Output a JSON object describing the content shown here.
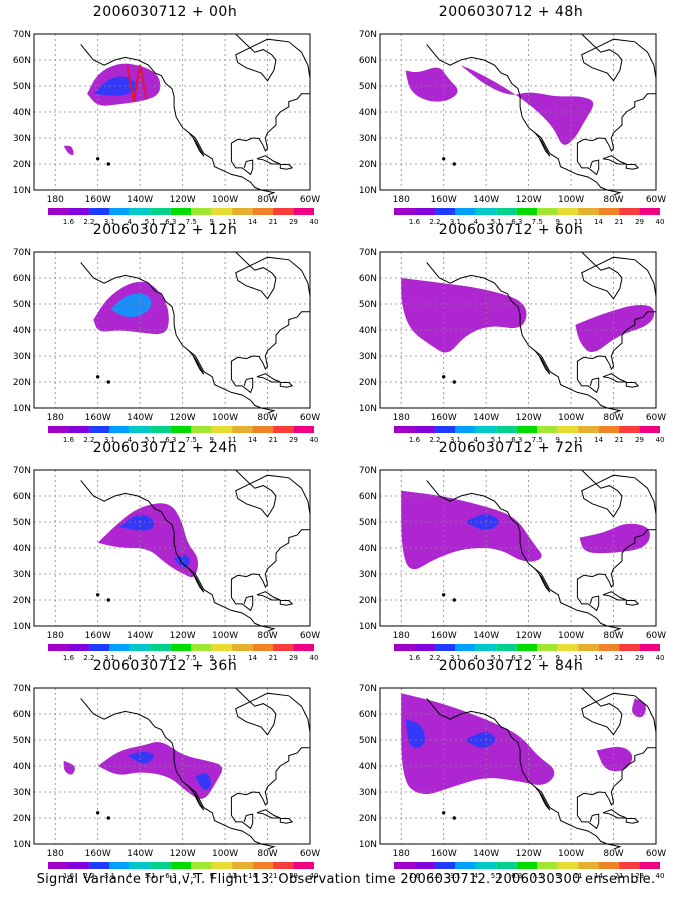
{
  "footer": "Signal Variance for u,v,T. Flight 13. Observation time 2006030712. 2006030300 ensemble.",
  "axis": {
    "lat_labels": [
      "70N",
      "60N",
      "50N",
      "40N",
      "30N",
      "20N",
      "10N"
    ],
    "lon_labels": [
      "180",
      "160W",
      "140W",
      "120W",
      "100W",
      "80W",
      "60W"
    ]
  },
  "colorbar": {
    "labels": [
      "1.6",
      "2.2",
      "3.1",
      "4",
      "5.1",
      "6.3",
      "7.5",
      "9",
      "11",
      "14",
      "21",
      "29",
      "40"
    ],
    "colors": [
      "#a000c8",
      "#8200dc",
      "#1e3cff",
      "#00a0ff",
      "#00c8c8",
      "#00d28c",
      "#00dc00",
      "#a0e632",
      "#e6dc32",
      "#e6af2d",
      "#f08228",
      "#fa3c3c",
      "#f00082"
    ]
  },
  "panels": [
    {
      "title": "2006030712 + 00h"
    },
    {
      "title": "2006030712 + 48h"
    },
    {
      "title": "2006030712 + 12h"
    },
    {
      "title": "2006030712 + 60h"
    },
    {
      "title": "2006030712 + 24h"
    },
    {
      "title": "2006030712 + 72h"
    },
    {
      "title": "2006030712 + 36h"
    },
    {
      "title": "2006030712 + 84h"
    }
  ]
}
